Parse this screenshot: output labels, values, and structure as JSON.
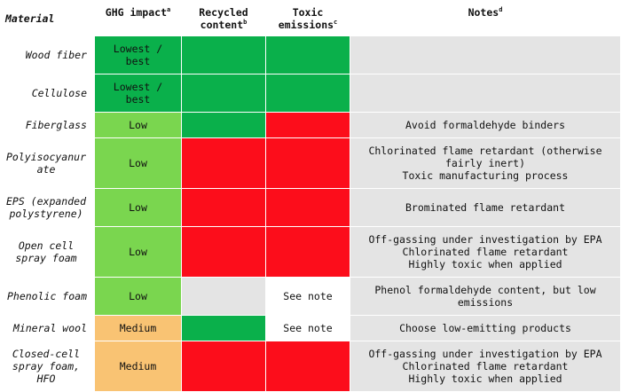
{
  "header": {
    "material": "Material",
    "ghg": "GHG impact",
    "ghg_sup": "a",
    "recycled": "Recycled content",
    "recycled_sup": "b",
    "toxic": "Toxic emissions",
    "toxic_sup": "c",
    "notes": "Notes",
    "notes_sup": "d"
  },
  "colors": {
    "dark_green": "#0ab04b",
    "light_green": "#7ad64f",
    "orange": "#f9c373",
    "red": "#fc0d1b",
    "grey": "#e4e4e4",
    "white": "#ffffff"
  },
  "rows": [
    {
      "material": [
        "Wood fiber"
      ],
      "ghg": [
        "Lowest /",
        "best"
      ],
      "ghg_color": "dark-green",
      "recycled": "",
      "recycled_color": "dark-green",
      "toxic": "",
      "toxic_color": "dark-green",
      "notes": []
    },
    {
      "material": [
        "Cellulose"
      ],
      "ghg": [
        "Lowest /",
        "best"
      ],
      "ghg_color": "dark-green",
      "recycled": "",
      "recycled_color": "dark-green",
      "toxic": "",
      "toxic_color": "dark-green",
      "notes": []
    },
    {
      "material": [
        "Fiberglass"
      ],
      "ghg": [
        "Low"
      ],
      "ghg_color": "light-green",
      "recycled": "",
      "recycled_color": "dark-green",
      "toxic": "",
      "toxic_color": "red",
      "notes": [
        "Avoid formaldehyde binders"
      ]
    },
    {
      "material": [
        "Polyisocyanur",
        "ate"
      ],
      "ghg": [
        "Low"
      ],
      "ghg_color": "light-green",
      "recycled": "",
      "recycled_color": "red",
      "toxic": "",
      "toxic_color": "red",
      "notes": [
        "Chlorinated flame retardant (otherwise",
        "fairly inert)",
        "Toxic manufacturing process"
      ]
    },
    {
      "material": [
        "EPS (expanded",
        "polystyrene)"
      ],
      "ghg": [
        "Low"
      ],
      "ghg_color": "light-green",
      "recycled": "",
      "recycled_color": "red",
      "toxic": "",
      "toxic_color": "red",
      "notes": [
        "Brominated flame retardant"
      ]
    },
    {
      "material": [
        "Open cell",
        "spray foam"
      ],
      "ghg": [
        "Low"
      ],
      "ghg_color": "light-green",
      "recycled": "",
      "recycled_color": "red",
      "toxic": "",
      "toxic_color": "red",
      "notes": [
        "Off-gassing under investigation by EPA",
        "Chlorinated flame retardant",
        "Highly toxic when applied"
      ]
    },
    {
      "material": [
        "Phenolic foam"
      ],
      "ghg": [
        "Low"
      ],
      "ghg_color": "light-green",
      "recycled": "",
      "recycled_color": "grey",
      "toxic": "See note",
      "toxic_color": "white",
      "notes": [
        "Phenol formaldehyde content, but low",
        "emissions"
      ]
    },
    {
      "material": [
        "Mineral wool"
      ],
      "ghg": [
        "Medium"
      ],
      "ghg_color": "orange",
      "recycled": "",
      "recycled_color": "dark-green",
      "toxic": "See note",
      "toxic_color": "white",
      "notes": [
        "Choose low-emitting products"
      ]
    },
    {
      "material": [
        "Closed-cell",
        "spray foam,",
        "HFO"
      ],
      "ghg": [
        "Medium"
      ],
      "ghg_color": "orange",
      "recycled": "",
      "recycled_color": "red",
      "toxic": "",
      "toxic_color": "red",
      "notes": [
        "Off-gassing under investigation by EPA",
        "Chlorinated flame retardant",
        "Highly toxic when applied"
      ]
    }
  ]
}
